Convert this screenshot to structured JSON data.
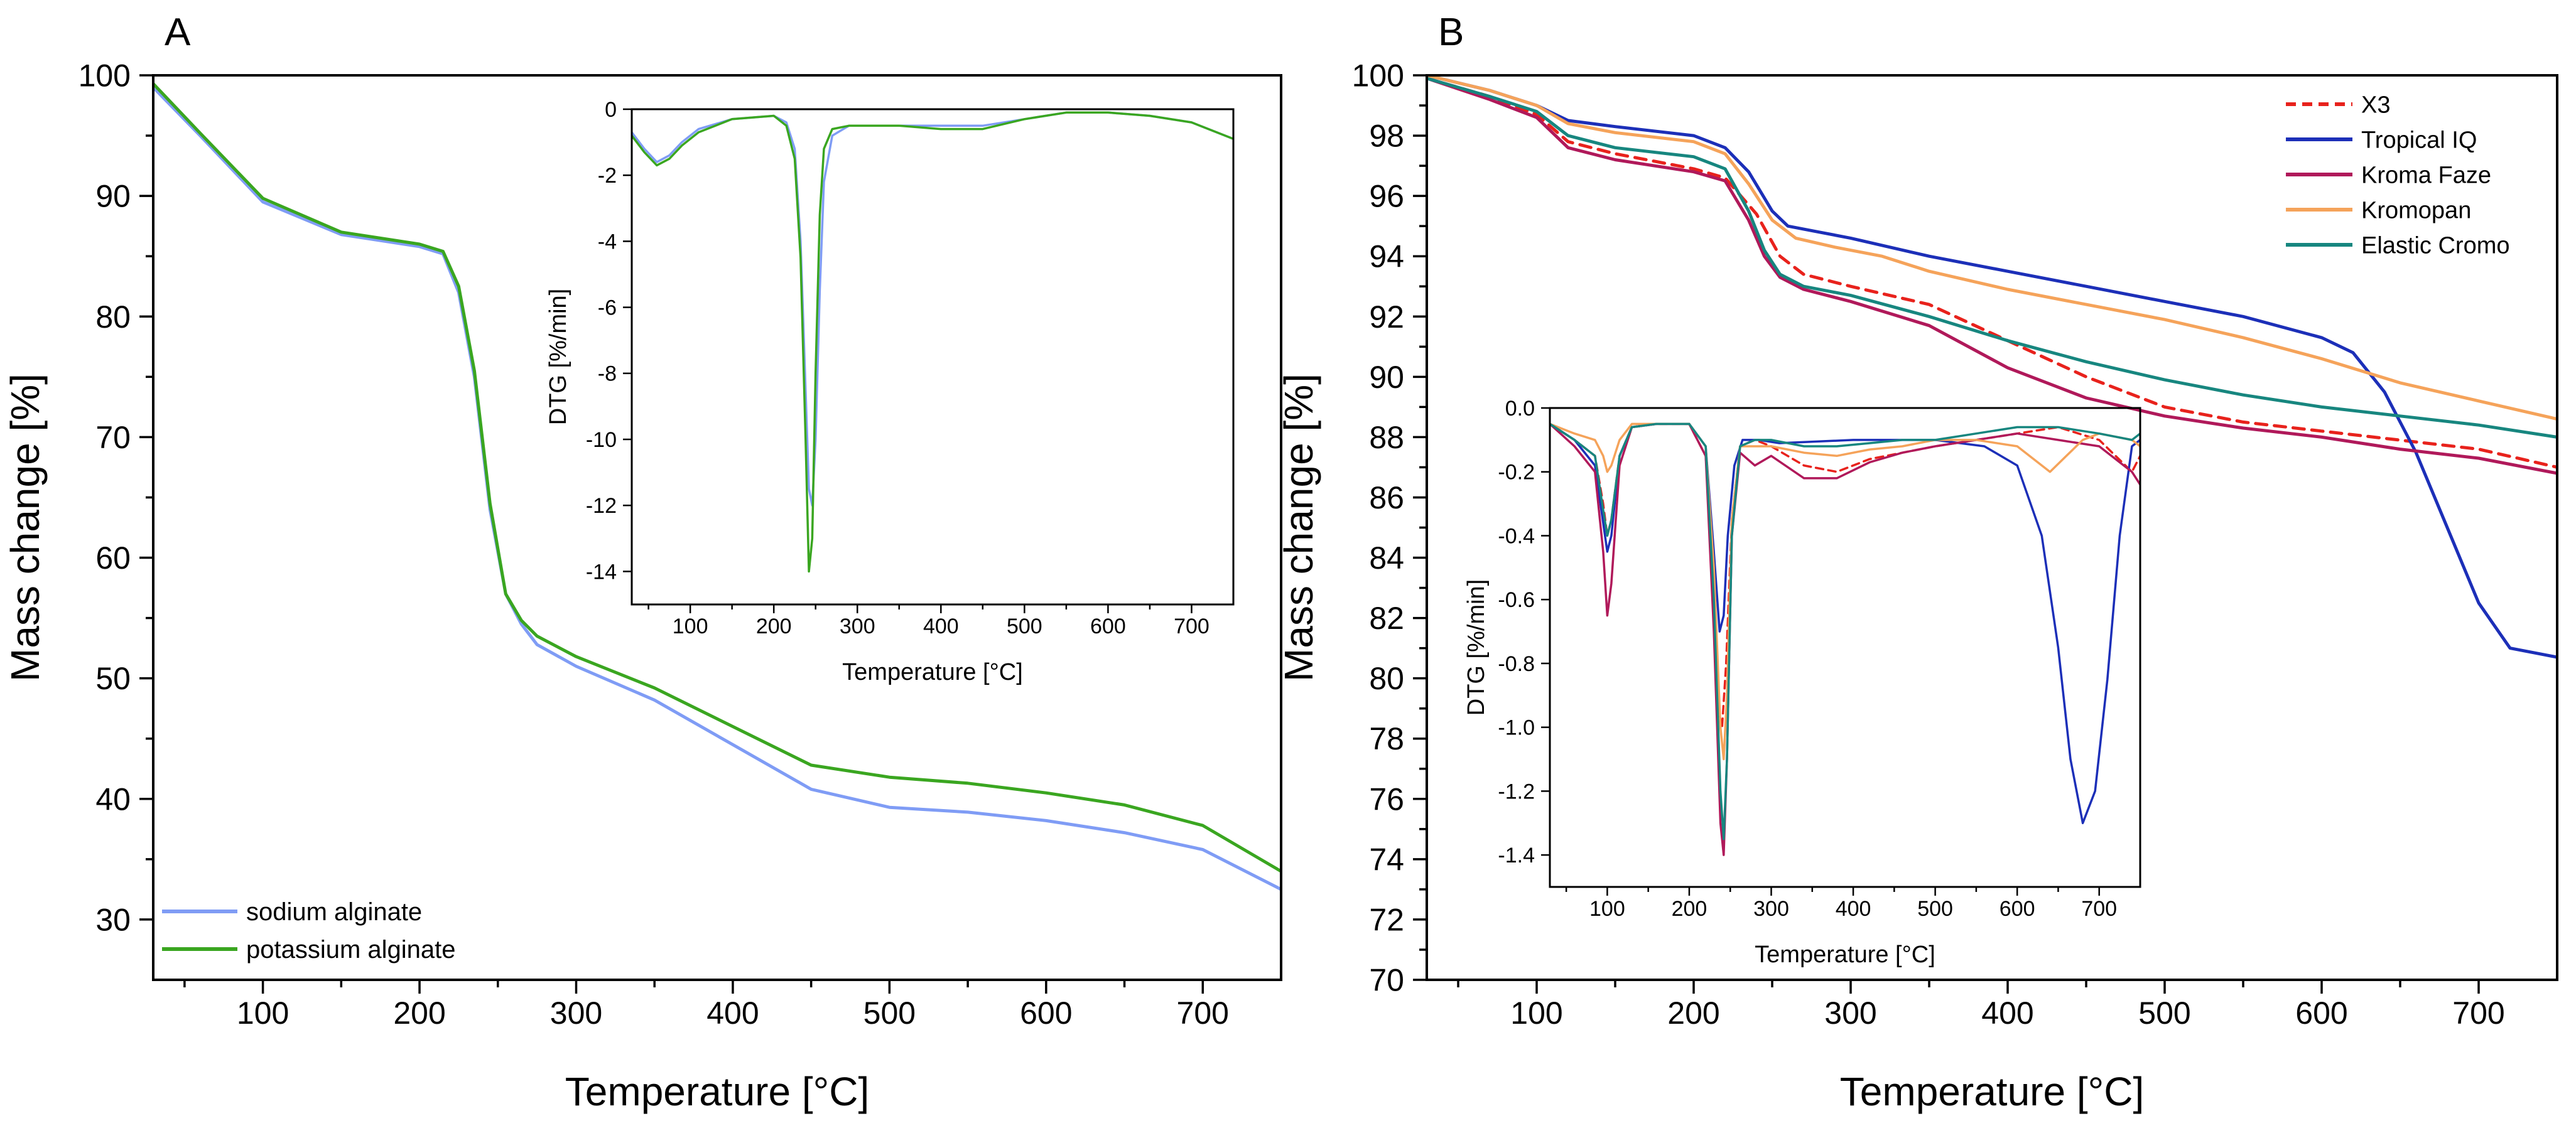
{
  "chart_data": [
    {
      "panel_label": "A",
      "type": "line",
      "xlabel": "Temperature [°C]",
      "ylabel": "Mass change [%]",
      "xlim": [
        30,
        750
      ],
      "ylim": [
        25,
        100
      ],
      "xticks": [
        100,
        200,
        300,
        400,
        500,
        600,
        700
      ],
      "yticks": [
        30,
        40,
        50,
        60,
        70,
        80,
        90,
        100
      ],
      "legend_position": "bottom-left",
      "series": [
        {
          "name": "sodium alginate",
          "color": "#7f9cf5",
          "x": [
            30,
            60,
            100,
            150,
            200,
            215,
            225,
            235,
            245,
            255,
            265,
            275,
            300,
            350,
            400,
            450,
            500,
            550,
            600,
            650,
            700,
            750
          ],
          "y": [
            99.0,
            95.0,
            89.5,
            86.8,
            85.8,
            85.2,
            82.0,
            75.0,
            64.0,
            57.0,
            54.5,
            52.8,
            51.0,
            48.2,
            44.5,
            40.8,
            39.3,
            38.9,
            38.2,
            37.2,
            35.8,
            32.5
          ]
        },
        {
          "name": "potassium alginate",
          "color": "#3aa620",
          "x": [
            30,
            60,
            100,
            150,
            200,
            215,
            225,
            235,
            245,
            255,
            265,
            275,
            300,
            350,
            400,
            450,
            500,
            550,
            600,
            650,
            700,
            750
          ],
          "y": [
            99.3,
            95.2,
            89.8,
            87.0,
            86.0,
            85.4,
            82.5,
            75.5,
            64.5,
            57.0,
            54.8,
            53.5,
            51.8,
            49.2,
            46.0,
            42.8,
            41.8,
            41.3,
            40.5,
            39.5,
            37.8,
            34.0
          ]
        }
      ],
      "inset": {
        "type": "line",
        "xlabel": "Temperature [°C]",
        "ylabel": "DTG [%/min]",
        "xlim": [
          30,
          750
        ],
        "ylim": [
          -15,
          0
        ],
        "xticks": [
          100,
          200,
          300,
          400,
          500,
          600,
          700
        ],
        "yticks": [
          0,
          -2,
          -4,
          -6,
          -8,
          -10,
          -12,
          -14
        ],
        "series": [
          {
            "name": "sodium alginate",
            "color": "#7f9cf5",
            "x": [
              30,
              45,
              60,
              75,
              90,
              110,
              150,
              200,
              215,
              225,
              232,
              238,
              242,
              246,
              250,
              255,
              260,
              270,
              290,
              350,
              400,
              450,
              500,
              550,
              600,
              650,
              700,
              750
            ],
            "y": [
              -0.7,
              -1.2,
              -1.6,
              -1.4,
              -1.0,
              -0.6,
              -0.3,
              -0.2,
              -0.4,
              -1.2,
              -4.0,
              -8.5,
              -11.5,
              -12.0,
              -10.0,
              -5.5,
              -2.2,
              -0.8,
              -0.5,
              -0.5,
              -0.5,
              -0.5,
              -0.3,
              -0.1,
              -0.1,
              -0.2,
              -0.4,
              -0.9
            ]
          },
          {
            "name": "potassium alginate",
            "color": "#3aa620",
            "x": [
              30,
              45,
              60,
              75,
              90,
              110,
              150,
              200,
              215,
              225,
              232,
              238,
              242,
              246,
              250,
              255,
              260,
              270,
              290,
              350,
              400,
              450,
              500,
              550,
              600,
              650,
              700,
              750
            ],
            "y": [
              -0.8,
              -1.3,
              -1.7,
              -1.5,
              -1.1,
              -0.7,
              -0.3,
              -0.2,
              -0.5,
              -1.5,
              -4.5,
              -10.0,
              -14.0,
              -13.0,
              -8.0,
              -3.2,
              -1.2,
              -0.6,
              -0.5,
              -0.5,
              -0.6,
              -0.6,
              -0.3,
              -0.1,
              -0.1,
              -0.2,
              -0.4,
              -0.9
            ]
          }
        ]
      }
    },
    {
      "panel_label": "B",
      "type": "line",
      "xlabel": "Temperature [°C]",
      "ylabel": "Mass change [%]",
      "xlim": [
        30,
        750
      ],
      "ylim": [
        70,
        100
      ],
      "xticks": [
        100,
        200,
        300,
        400,
        500,
        600,
        700
      ],
      "yticks": [
        70,
        72,
        74,
        76,
        78,
        80,
        82,
        84,
        86,
        88,
        90,
        92,
        94,
        96,
        98,
        100
      ],
      "legend_position": "top-right",
      "series": [
        {
          "name": "X3",
          "color": "#e8221c",
          "dashed": true,
          "x": [
            30,
            70,
            100,
            120,
            150,
            200,
            220,
            240,
            255,
            270,
            300,
            350,
            400,
            450,
            500,
            550,
            600,
            650,
            700,
            750
          ],
          "y": [
            99.9,
            99.3,
            98.7,
            97.8,
            97.4,
            96.9,
            96.6,
            95.4,
            94.0,
            93.4,
            93.0,
            92.4,
            91.2,
            90.0,
            89.0,
            88.5,
            88.2,
            87.9,
            87.6,
            87.0
          ]
        },
        {
          "name": "Tropical IQ",
          "color": "#1c2fb8",
          "x": [
            30,
            70,
            100,
            120,
            150,
            200,
            220,
            235,
            250,
            260,
            280,
            300,
            350,
            400,
            450,
            500,
            550,
            600,
            620,
            640,
            660,
            680,
            700,
            720,
            740,
            750
          ],
          "y": [
            100.0,
            99.5,
            99.0,
            98.5,
            98.3,
            98.0,
            97.6,
            96.8,
            95.5,
            95.0,
            94.8,
            94.6,
            94.0,
            93.5,
            93.0,
            92.5,
            92.0,
            91.3,
            90.8,
            89.5,
            87.5,
            85.0,
            82.5,
            81.0,
            80.8,
            80.7
          ]
        },
        {
          "name": "Kroma Faze",
          "color": "#b0195a",
          "x": [
            30,
            70,
            100,
            120,
            150,
            200,
            220,
            235,
            245,
            255,
            270,
            300,
            350,
            400,
            450,
            500,
            550,
            600,
            650,
            700,
            750
          ],
          "y": [
            99.9,
            99.2,
            98.6,
            97.6,
            97.2,
            96.8,
            96.5,
            95.2,
            94.0,
            93.3,
            92.9,
            92.5,
            91.7,
            90.3,
            89.3,
            88.7,
            88.3,
            88.0,
            87.6,
            87.3,
            86.8
          ]
        },
        {
          "name": "Kromopan",
          "color": "#f5a35a",
          "x": [
            30,
            70,
            100,
            120,
            150,
            200,
            220,
            235,
            250,
            265,
            290,
            320,
            350,
            400,
            450,
            500,
            550,
            600,
            650,
            700,
            750
          ],
          "y": [
            100.0,
            99.5,
            99.0,
            98.4,
            98.1,
            97.8,
            97.4,
            96.4,
            95.2,
            94.6,
            94.3,
            94.0,
            93.5,
            92.9,
            92.4,
            91.9,
            91.3,
            90.6,
            89.8,
            89.2,
            88.6
          ]
        },
        {
          "name": "Elastic Cromo",
          "color": "#17867f",
          "x": [
            30,
            70,
            100,
            120,
            150,
            200,
            220,
            235,
            245,
            255,
            270,
            300,
            350,
            400,
            450,
            500,
            550,
            600,
            650,
            700,
            750
          ],
          "y": [
            99.9,
            99.3,
            98.8,
            98.0,
            97.6,
            97.3,
            96.9,
            95.5,
            94.2,
            93.4,
            93.0,
            92.7,
            92.0,
            91.2,
            90.5,
            89.9,
            89.4,
            89.0,
            88.7,
            88.4,
            88.0
          ]
        }
      ],
      "inset": {
        "type": "line",
        "xlabel": "Temperature [°C]",
        "ylabel": "DTG [%/min]",
        "xlim": [
          30,
          750
        ],
        "ylim": [
          -1.5,
          0
        ],
        "xticks": [
          100,
          200,
          300,
          400,
          500,
          600,
          700
        ],
        "yticks": [
          0.0,
          -0.2,
          -0.4,
          -0.6,
          -0.8,
          -1.0,
          -1.2,
          -1.4
        ],
        "series": [
          {
            "name": "X3",
            "color": "#e8221c",
            "dashed": true,
            "x": [
              30,
              60,
              85,
              95,
              100,
              105,
              115,
              130,
              160,
              200,
              220,
              230,
              236,
              240,
              245,
              252,
              262,
              280,
              300,
              340,
              380,
              420,
              460,
              500,
              550,
              600,
              650,
              700,
              740,
              750
            ],
            "y": [
              -0.05,
              -0.1,
              -0.15,
              -0.3,
              -0.4,
              -0.35,
              -0.15,
              -0.06,
              -0.05,
              -0.05,
              -0.15,
              -0.5,
              -0.95,
              -1.0,
              -0.8,
              -0.35,
              -0.12,
              -0.1,
              -0.12,
              -0.18,
              -0.2,
              -0.16,
              -0.14,
              -0.12,
              -0.1,
              -0.08,
              -0.06,
              -0.1,
              -0.2,
              -0.15
            ]
          },
          {
            "name": "Tropical IQ",
            "color": "#1c2fb8",
            "x": [
              30,
              60,
              85,
              95,
              100,
              105,
              115,
              130,
              160,
              200,
              220,
              230,
              237,
              242,
              247,
              255,
              265,
              285,
              310,
              400,
              500,
              560,
              600,
              630,
              650,
              665,
              680,
              695,
              710,
              725,
              740,
              750
            ],
            "y": [
              -0.05,
              -0.1,
              -0.18,
              -0.36,
              -0.45,
              -0.4,
              -0.15,
              -0.06,
              -0.05,
              -0.05,
              -0.12,
              -0.45,
              -0.7,
              -0.65,
              -0.4,
              -0.18,
              -0.1,
              -0.1,
              -0.11,
              -0.1,
              -0.1,
              -0.12,
              -0.18,
              -0.4,
              -0.75,
              -1.1,
              -1.3,
              -1.2,
              -0.85,
              -0.4,
              -0.12,
              -0.1
            ]
          },
          {
            "name": "Kroma Faze",
            "color": "#b0195a",
            "x": [
              30,
              60,
              85,
              95,
              100,
              105,
              115,
              130,
              160,
              200,
              220,
              230,
              238,
              242,
              246,
              252,
              262,
              280,
              300,
              340,
              380,
              420,
              460,
              500,
              550,
              600,
              650,
              700,
              740,
              750
            ],
            "y": [
              -0.05,
              -0.12,
              -0.2,
              -0.45,
              -0.65,
              -0.55,
              -0.18,
              -0.06,
              -0.05,
              -0.05,
              -0.15,
              -0.7,
              -1.3,
              -1.4,
              -1.1,
              -0.4,
              -0.14,
              -0.18,
              -0.15,
              -0.22,
              -0.22,
              -0.17,
              -0.14,
              -0.12,
              -0.1,
              -0.08,
              -0.1,
              -0.12,
              -0.2,
              -0.24
            ]
          },
          {
            "name": "Kromopan",
            "color": "#f5a35a",
            "x": [
              30,
              60,
              85,
              95,
              100,
              105,
              115,
              130,
              160,
              200,
              220,
              230,
              238,
              242,
              246,
              252,
              262,
              280,
              300,
              340,
              380,
              420,
              460,
              500,
              550,
              600,
              620,
              640,
              660,
              680,
              700,
              740,
              750
            ],
            "y": [
              -0.05,
              -0.08,
              -0.1,
              -0.15,
              -0.2,
              -0.18,
              -0.1,
              -0.05,
              -0.05,
              -0.05,
              -0.12,
              -0.5,
              -1.0,
              -1.1,
              -0.9,
              -0.35,
              -0.12,
              -0.12,
              -0.12,
              -0.14,
              -0.15,
              -0.13,
              -0.12,
              -0.1,
              -0.1,
              -0.12,
              -0.16,
              -0.2,
              -0.15,
              -0.1,
              -0.08,
              -0.1,
              -0.12
            ]
          },
          {
            "name": "Elastic Cromo",
            "color": "#17867f",
            "x": [
              30,
              60,
              85,
              95,
              100,
              105,
              115,
              130,
              160,
              200,
              220,
              230,
              238,
              242,
              246,
              252,
              262,
              280,
              300,
              340,
              380,
              420,
              460,
              500,
              550,
              600,
              650,
              700,
              740,
              750
            ],
            "y": [
              -0.05,
              -0.1,
              -0.15,
              -0.32,
              -0.4,
              -0.35,
              -0.15,
              -0.06,
              -0.05,
              -0.05,
              -0.12,
              -0.6,
              -1.2,
              -1.35,
              -1.1,
              -0.4,
              -0.12,
              -0.1,
              -0.1,
              -0.12,
              -0.12,
              -0.11,
              -0.1,
              -0.1,
              -0.08,
              -0.06,
              -0.06,
              -0.08,
              -0.1,
              -0.08
            ]
          }
        ]
      }
    }
  ]
}
